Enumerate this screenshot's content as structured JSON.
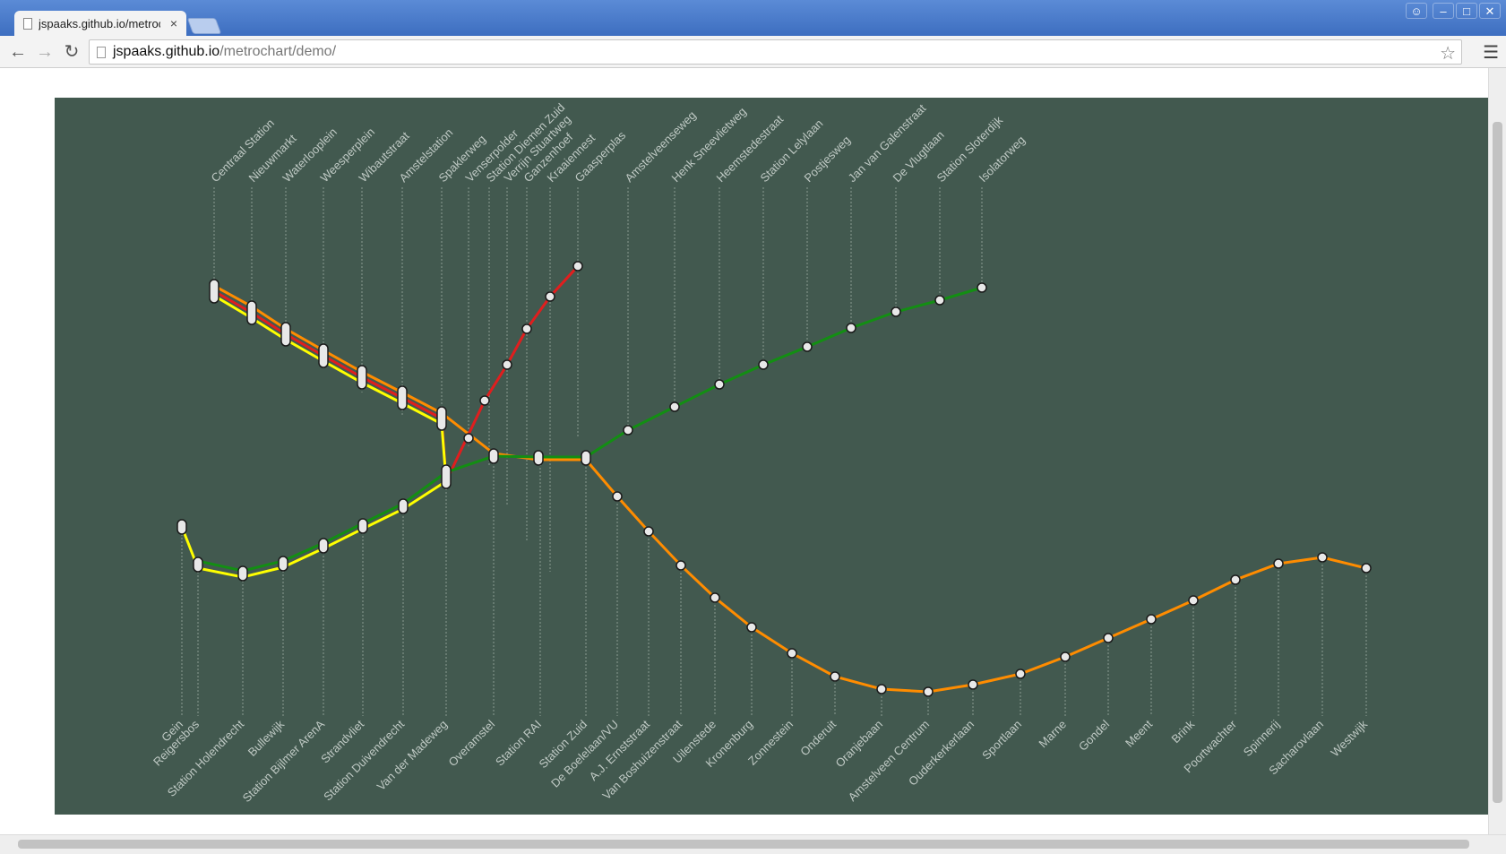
{
  "browser": {
    "tab_title": "jspaaks.github.io/metrochart/demo/",
    "tab_close": "×",
    "url_host": "jspaaks.github.io",
    "url_path": "/metrochart/demo/",
    "icons": [
      "page-icon",
      "back-icon",
      "forward-icon",
      "reload-icon",
      "star-icon",
      "menu-icon",
      "user-icon",
      "minimize-icon",
      "maximize-icon",
      "close-icon"
    ]
  },
  "colors": {
    "background": "#42594f",
    "orange": "#ff8c00",
    "red": "#e01e1e",
    "yellow": "#ffff00",
    "green": "#138e13",
    "guide": "#8a9a92",
    "label": "#bfc9c4"
  },
  "chart_data": {
    "type": "diagram",
    "top_stations": [
      "Centraal Station",
      "Nieuwmarkt",
      "Waterlooplein",
      "Weesperplein",
      "Wibautstraat",
      "Amstelstation",
      "Spaklerweg",
      "Venserpolder",
      "Station Diemen Zuid",
      "Verrijn Stuartweg",
      "Ganzenhoef",
      "Kraaiennest",
      "Gaasperplas",
      "Amstelveenseweg",
      "Henk Sneevlietweg",
      "Heemstedestraat",
      "Station Lelylaan",
      "Postjesweg",
      "Jan van Galenstraat",
      "De Vlugtlaan",
      "Station Sloterdijk",
      "Isolatorweg"
    ],
    "bottom_stations": [
      "Gein",
      "Reigersbos",
      "Station Holendrecht",
      "Bullewijk",
      "Station Bijlmer ArenA",
      "Strandvliet",
      "Station Duivendrecht",
      "Van der Madeweg",
      "Overamstel",
      "Station RAI",
      "Station Zuid",
      "De Boelelaan/VU",
      "A.J. Ernststraat",
      "Van Boshuizenstraat",
      "Uilenstede",
      "Kronenburg",
      "Zonnestein",
      "Onderuit",
      "Oranjebaan",
      "Amstelveen Centrum",
      "Ouderkerkerlaan",
      "Sportlaan",
      "Marne",
      "Gondel",
      "Meent",
      "Brink",
      "Poortwachter",
      "Spinnerij",
      "Sacharovlaan",
      "Westwijk"
    ]
  }
}
